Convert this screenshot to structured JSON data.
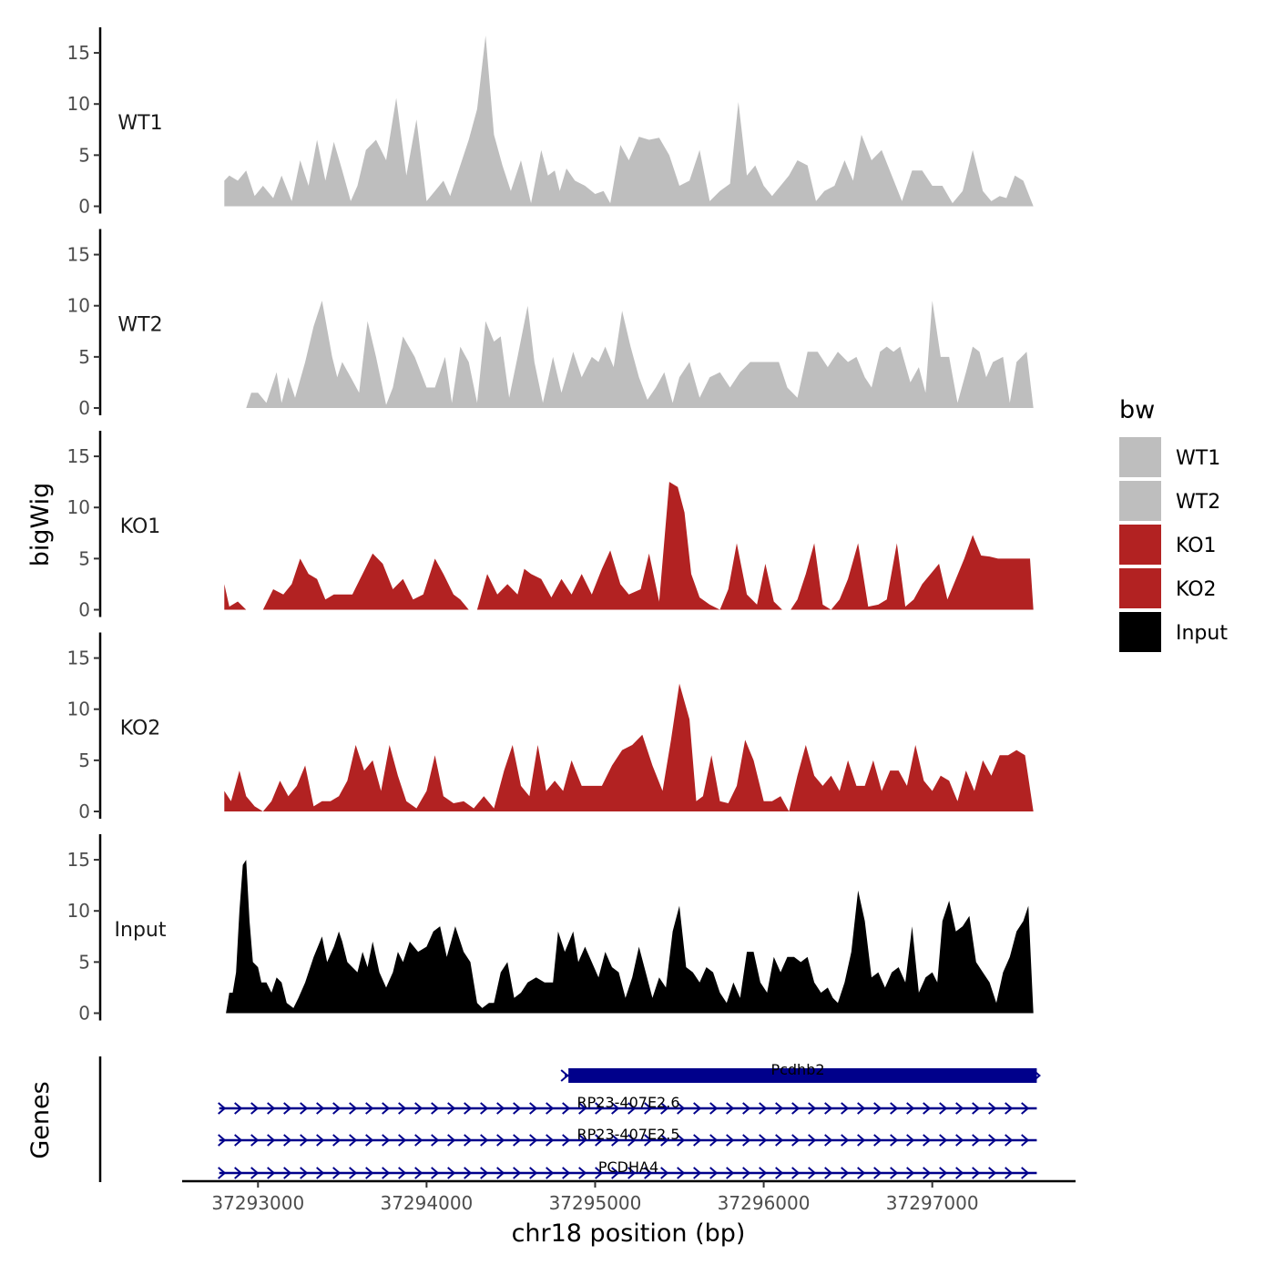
{
  "chart_data": {
    "type": "area",
    "region": "chr18",
    "xlabel": "chr18 position (bp)",
    "ylabel": "bigWig",
    "genes_label": "Genes",
    "xlim": [
      37292550,
      37297850
    ],
    "ylim": [
      0,
      17.5
    ],
    "x_ticks": [
      37293000,
      37294000,
      37295000,
      37296000,
      37297000
    ],
    "x_tick_labels": [
      "37293000",
      "37294000",
      "37295000",
      "37296000",
      "37297000"
    ],
    "y_ticks": [
      0,
      5,
      10,
      15
    ],
    "y_tick_labels": [
      "0",
      "5",
      "10",
      "15"
    ],
    "legend": {
      "title": "bw",
      "entries": [
        {
          "label": "WT1",
          "color": "#bebebe"
        },
        {
          "label": "WT2",
          "color": "#bebebe"
        },
        {
          "label": "KO1",
          "color": "#b22222"
        },
        {
          "label": "KO2",
          "color": "#b22222"
        },
        {
          "label": "Input",
          "color": "#000000"
        }
      ]
    },
    "tracks": [
      {
        "name": "WT1",
        "color": "#bebebe",
        "x": [
          37292800,
          37292830,
          37292880,
          37292930,
          37292980,
          37293030,
          37293090,
          37293140,
          37293200,
          37293250,
          37293300,
          37293350,
          37293400,
          37293450,
          37293500,
          37293550,
          37293590,
          37293640,
          37293700,
          37293760,
          37293820,
          37293880,
          37293940,
          37294000,
          37294050,
          37294100,
          37294140,
          37294200,
          37294250,
          37294300,
          37294350,
          37294400,
          37294450,
          37294500,
          37294560,
          37294620,
          37294680,
          37294720,
          37294760,
          37294790,
          37294830,
          37294880,
          37294940,
          37295000,
          37295050,
          37295090,
          37295150,
          37295200,
          37295260,
          37295320,
          37295380,
          37295440,
          37295500,
          37295560,
          37295620,
          37295680,
          37295740,
          37295800,
          37295850,
          37295900,
          37295950,
          37296000,
          37296050,
          37296100,
          37296150,
          37296200,
          37296260,
          37296310,
          37296360,
          37296420,
          37296480,
          37296530,
          37296580,
          37296640,
          37296700,
          37296760,
          37296820,
          37296880,
          37296940,
          37297000,
          37297060,
          37297120,
          37297180,
          37297240,
          37297300,
          37297350,
          37297400,
          37297440,
          37297490,
          37297540,
          37297600
        ],
        "y": [
          2.5,
          3,
          2.5,
          3.5,
          1,
          2,
          0.8,
          3,
          0.5,
          4.5,
          2,
          6.5,
          2.5,
          6.3,
          3.5,
          0.5,
          2,
          5.5,
          6.5,
          4.5,
          10.6,
          3,
          8.5,
          0.5,
          1.5,
          2.5,
          1,
          4,
          6.5,
          9.5,
          16.7,
          7,
          4,
          1.5,
          4.5,
          0.3,
          5.5,
          3,
          3.5,
          1.5,
          3.7,
          2.5,
          2,
          1.2,
          1.5,
          0.3,
          6,
          4.5,
          6.8,
          6.5,
          6.7,
          5,
          2,
          2.5,
          5.5,
          0.5,
          1.5,
          2.2,
          10.2,
          3,
          4,
          2,
          1,
          2,
          3,
          4.5,
          4,
          0.5,
          1.5,
          2,
          4.5,
          2.5,
          7,
          4.5,
          5.5,
          3,
          0.5,
          3.5,
          3.5,
          2,
          2,
          0.3,
          1.5,
          5.5,
          1.5,
          0.5,
          1,
          0.8,
          3,
          2.5,
          0
        ],
        "y_max": 16.7
      },
      {
        "name": "WT2",
        "color": "#bebebe",
        "x": [
          37292930,
          37292960,
          37293000,
          37293050,
          37293110,
          37293140,
          37293180,
          37293220,
          37293280,
          37293330,
          37293380,
          37293440,
          37293470,
          37293500,
          37293550,
          37293600,
          37293650,
          37293700,
          37293760,
          37293800,
          37293860,
          37293930,
          37294000,
          37294050,
          37294110,
          37294150,
          37294200,
          37294250,
          37294300,
          37294350,
          37294400,
          37294440,
          37294490,
          37294540,
          37294600,
          37294640,
          37294690,
          37294750,
          37294800,
          37294870,
          37294920,
          37294980,
          37295020,
          37295060,
          37295110,
          37295160,
          37295210,
          37295260,
          37295310,
          37295360,
          37295410,
          37295460,
          37295500,
          37295560,
          37295620,
          37295680,
          37295740,
          37295800,
          37295860,
          37295920,
          37295980,
          37296040,
          37296090,
          37296140,
          37296200,
          37296260,
          37296320,
          37296380,
          37296440,
          37296500,
          37296550,
          37296600,
          37296640,
          37296690,
          37296730,
          37296770,
          37296810,
          37296870,
          37296920,
          37296960,
          37297000,
          37297050,
          37297100,
          37297150,
          37297200,
          37297240,
          37297280,
          37297320,
          37297360,
          37297420,
          37297460,
          37297500,
          37297560,
          37297600
        ],
        "y": [
          0,
          1.5,
          1.5,
          0.5,
          3.5,
          0.5,
          3,
          1,
          4.5,
          8,
          10.5,
          5,
          3,
          4.5,
          3,
          1.5,
          8.5,
          5,
          0.3,
          2,
          7,
          5,
          2,
          2,
          5,
          0.5,
          6,
          4.5,
          0.5,
          8.5,
          6.5,
          7,
          1,
          5,
          10,
          4.5,
          0.5,
          5,
          1.5,
          5.5,
          3,
          5,
          4.5,
          6,
          4,
          9.5,
          6,
          3,
          0.8,
          2,
          3.5,
          0.5,
          3,
          4.5,
          1,
          3,
          3.5,
          2,
          3.5,
          4.5,
          4.5,
          4.5,
          4.5,
          2,
          1,
          5.5,
          5.5,
          4,
          5.5,
          4.5,
          5,
          3,
          2,
          5.5,
          6,
          5.5,
          6,
          2.5,
          4,
          1.5,
          10.5,
          5,
          5,
          0.5,
          3.5,
          6,
          5.5,
          3,
          4.5,
          5,
          0.5,
          4.5,
          5.5,
          0
        ],
        "y_max": 10.8
      },
      {
        "name": "KO1",
        "color": "#b22222",
        "x": [
          37292800,
          37292830,
          37292880,
          37292930,
          37292980,
          37293030,
          37293090,
          37293150,
          37293200,
          37293250,
          37293300,
          37293350,
          37293400,
          37293450,
          37293500,
          37293560,
          37293620,
          37293680,
          37293740,
          37293800,
          37293860,
          37293920,
          37293980,
          37294050,
          37294100,
          37294160,
          37294200,
          37294250,
          37294300,
          37294360,
          37294420,
          37294480,
          37294540,
          37294580,
          37294620,
          37294680,
          37294740,
          37294800,
          37294860,
          37294920,
          37294980,
          37295040,
          37295090,
          37295150,
          37295200,
          37295270,
          37295320,
          37295380,
          37295440,
          37295490,
          37295530,
          37295570,
          37295620,
          37295680,
          37295740,
          37295790,
          37295840,
          37295900,
          37295960,
          37296010,
          37296060,
          37296110,
          37296160,
          37296200,
          37296250,
          37296300,
          37296350,
          37296400,
          37296450,
          37296500,
          37296560,
          37296620,
          37296680,
          37296730,
          37296790,
          37296840,
          37296890,
          37296940,
          37296990,
          37297040,
          37297090,
          37297140,
          37297190,
          37297240,
          37297290,
          37297340,
          37297390,
          37297430,
          37297480,
          37297530,
          37297580,
          37297600
        ],
        "y": [
          2.5,
          0.3,
          0.8,
          0,
          0,
          0,
          2,
          1.5,
          2.5,
          5,
          3.5,
          3,
          1,
          1.5,
          1.5,
          1.5,
          3.5,
          5.5,
          4.5,
          2,
          3,
          1,
          1.5,
          5,
          3.5,
          1.5,
          1,
          0,
          0,
          3.5,
          1.5,
          2.5,
          1.5,
          4,
          3.5,
          3,
          1.2,
          3,
          1.5,
          3.5,
          1.5,
          4,
          5.8,
          2.5,
          1.5,
          2,
          5.5,
          0.8,
          12.5,
          12,
          9.5,
          3.5,
          1.2,
          0.5,
          0,
          2,
          6.5,
          1.5,
          0.5,
          4.5,
          0.8,
          0,
          0,
          1,
          3.5,
          6.5,
          0.5,
          0,
          1,
          3,
          6.5,
          0.3,
          0.5,
          1,
          6.5,
          0.3,
          1,
          2.5,
          3.5,
          4.5,
          1,
          3,
          5,
          7.3,
          5.3,
          5.2,
          5,
          5,
          5,
          5,
          5,
          0
        ],
        "y_max": 12.7
      },
      {
        "name": "KO2",
        "color": "#b22222",
        "x": [
          37292800,
          37292840,
          37292890,
          37292930,
          37292980,
          37293030,
          37293080,
          37293130,
          37293180,
          37293230,
          37293280,
          37293330,
          37293380,
          37293430,
          37293480,
          37293530,
          37293580,
          37293630,
          37293680,
          37293730,
          37293780,
          37293830,
          37293880,
          37293940,
          37294000,
          37294050,
          37294100,
          37294160,
          37294220,
          37294280,
          37294340,
          37294400,
          37294460,
          37294510,
          37294560,
          37294610,
          37294660,
          37294710,
          37294760,
          37294810,
          37294860,
          37294920,
          37294980,
          37295040,
          37295100,
          37295160,
          37295220,
          37295280,
          37295340,
          37295400,
          37295450,
          37295500,
          37295560,
          37295600,
          37295640,
          37295690,
          37295740,
          37295790,
          37295840,
          37295890,
          37295940,
          37296000,
          37296050,
          37296100,
          37296150,
          37296200,
          37296250,
          37296300,
          37296350,
          37296400,
          37296450,
          37296500,
          37296550,
          37296600,
          37296650,
          37296700,
          37296750,
          37296800,
          37296850,
          37296900,
          37296950,
          37297000,
          37297050,
          37297100,
          37297150,
          37297200,
          37297250,
          37297300,
          37297350,
          37297400,
          37297450,
          37297500,
          37297550,
          37297600
        ],
        "y": [
          2,
          1,
          4,
          1.5,
          0.5,
          0,
          1,
          3,
          1.5,
          2.5,
          4.5,
          0.5,
          1,
          1,
          1.5,
          3,
          6.5,
          4,
          5,
          2,
          6.5,
          3.5,
          1,
          0.3,
          2,
          5.5,
          1.5,
          0.8,
          1,
          0.3,
          1.5,
          0.3,
          4,
          6.5,
          2.5,
          1.5,
          6.5,
          2,
          3,
          2,
          5,
          2.5,
          2.5,
          2.5,
          4.5,
          6,
          6.5,
          7.5,
          4.5,
          2,
          7,
          12.5,
          9,
          1,
          1.5,
          5.5,
          1,
          0.8,
          2.5,
          7,
          5,
          1,
          1,
          1.5,
          0,
          3.5,
          6.5,
          3.5,
          2.5,
          3.5,
          2,
          5,
          2.5,
          2.5,
          5,
          2,
          4,
          4,
          2.5,
          6.5,
          3,
          2,
          3.5,
          3,
          1,
          4,
          2,
          5,
          3.5,
          5.5,
          5.5,
          6,
          5.5,
          0
        ],
        "y_max": 12.5
      },
      {
        "name": "Input",
        "color": "#000000",
        "x": [
          37292810,
          37292830,
          37292850,
          37292870,
          37292890,
          37292910,
          37292930,
          37292950,
          37292970,
          37293000,
          37293020,
          37293050,
          37293080,
          37293110,
          37293140,
          37293170,
          37293210,
          37293240,
          37293280,
          37293330,
          37293380,
          37293410,
          37293450,
          37293480,
          37293500,
          37293530,
          37293560,
          37293590,
          37293620,
          37293650,
          37293680,
          37293720,
          37293760,
          37293800,
          37293830,
          37293860,
          37293900,
          37293950,
          37294000,
          37294040,
          37294080,
          37294120,
          37294170,
          37294220,
          37294260,
          37294300,
          37294330,
          37294370,
          37294400,
          37294440,
          37294480,
          37294520,
          37294560,
          37294600,
          37294650,
          37294700,
          37294750,
          37294780,
          37294820,
          37294870,
          37294900,
          37294940,
          37294980,
          37295020,
          37295060,
          37295100,
          37295140,
          37295180,
          37295220,
          37295260,
          37295300,
          37295340,
          37295380,
          37295420,
          37295460,
          37295500,
          37295540,
          37295580,
          37295620,
          37295660,
          37295700,
          37295740,
          37295780,
          37295820,
          37295860,
          37295900,
          37295940,
          37295980,
          37296020,
          37296060,
          37296100,
          37296140,
          37296180,
          37296220,
          37296260,
          37296300,
          37296340,
          37296380,
          37296410,
          37296440,
          37296480,
          37296520,
          37296560,
          37296600,
          37296640,
          37296680,
          37296720,
          37296760,
          37296800,
          37296840,
          37296880,
          37296920,
          37296960,
          37297000,
          37297030,
          37297060,
          37297100,
          37297140,
          37297180,
          37297220,
          37297260,
          37297300,
          37297340,
          37297380,
          37297420,
          37297460,
          37297500,
          37297540,
          37297570,
          37297600
        ],
        "y": [
          0,
          2,
          2,
          4,
          10,
          14.5,
          15,
          9,
          5,
          4.5,
          3,
          3,
          2,
          3.5,
          3,
          1,
          0.5,
          1.5,
          3,
          5.5,
          7.5,
          5,
          6.5,
          8,
          7,
          5,
          4.5,
          4,
          6,
          4.5,
          7,
          4,
          2.5,
          4,
          6,
          5,
          7,
          6,
          6.5,
          8,
          8.5,
          5.5,
          8.5,
          6,
          5,
          1,
          0.5,
          1,
          1,
          4,
          5,
          1.5,
          2,
          3,
          3.5,
          3,
          3,
          8,
          6,
          8,
          5,
          6.5,
          5,
          3.5,
          6,
          4.5,
          4,
          1.5,
          3.5,
          6.5,
          4,
          1.5,
          3.5,
          2.5,
          8,
          10.5,
          4.5,
          4,
          3,
          4.5,
          4,
          2,
          1,
          3,
          1.5,
          6,
          6,
          3,
          2,
          5.5,
          4,
          5.5,
          5.5,
          5,
          5.5,
          3,
          2,
          2.5,
          1.5,
          1,
          3,
          6,
          12,
          9,
          3.5,
          4,
          2.5,
          4,
          4.5,
          3,
          8.5,
          2,
          3.5,
          4,
          3,
          9,
          11,
          8,
          8.5,
          9.5,
          5,
          4,
          3,
          1,
          4,
          5.5,
          8,
          9,
          10.5,
          0
        ],
        "y_max": 15.2
      }
    ],
    "genes": [
      {
        "name": "Pcdhb2",
        "start": 37294820,
        "end": 37297620,
        "strand": "+",
        "style": "block"
      },
      {
        "name": "RP23-407E2.6",
        "start": 37292770,
        "end": 37297620,
        "strand": "+",
        "style": "line"
      },
      {
        "name": "RP23-407E2.5",
        "start": 37292770,
        "end": 37297620,
        "strand": "+",
        "style": "line"
      },
      {
        "name": "PCDHA4",
        "start": 37292770,
        "end": 37297620,
        "strand": "+",
        "style": "line"
      }
    ],
    "gene_color": "#00008b"
  }
}
